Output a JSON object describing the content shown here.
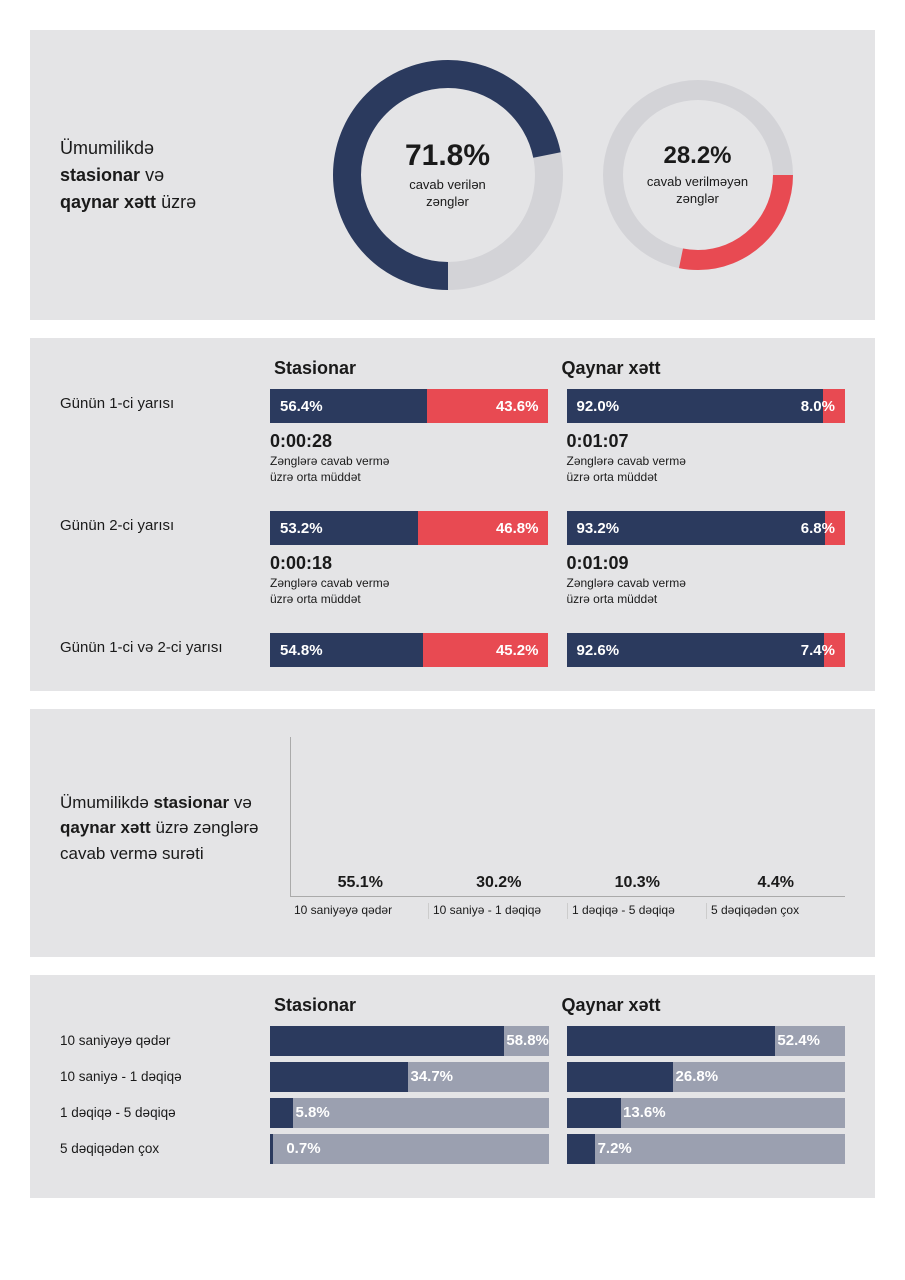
{
  "colors": {
    "navy": "#2b3a5e",
    "red": "#e84a52",
    "lightgrey": "#d3d3d7",
    "panel_bg": "#e4e4e6",
    "bar_track": "#9ba0b0",
    "text": "#1a1a1a",
    "white": "#ffffff"
  },
  "panel1": {
    "title_prefix": "Ümumilikdə ",
    "title_bold1": "stasionar",
    "title_mid": " və ",
    "title_bold2": "qaynar xətt",
    "title_suffix": " üzrə",
    "donut1": {
      "percent": 71.8,
      "percent_label": "71.8%",
      "caption": "cavab verilən\nzənglər",
      "ring_color": "#2b3a5e",
      "bg_ring": "#d3d3d7",
      "start_deg": 90
    },
    "donut2": {
      "percent": 28.2,
      "percent_label": "28.2%",
      "caption": "cavab verilməyən\nzənglər",
      "ring_color": "#e84a52",
      "bg_ring": "#d3d3d7",
      "start_deg": 0
    }
  },
  "panel2": {
    "col1_header": "Stasionar",
    "col2_header": "Qaynar xətt",
    "rows": [
      {
        "label": "Günün 1-ci yarısı",
        "stasionar": {
          "left_pct": 56.4,
          "left_label": "56.4%",
          "right_pct": 43.6,
          "right_label": "43.6%",
          "time": "0:00:28"
        },
        "qaynar": {
          "left_pct": 92.0,
          "left_label": "92.0%",
          "right_pct": 8.0,
          "right_label": "8.0%",
          "time": "0:01:07"
        },
        "time_desc": "Zənglərə cavab vermə\nüzrə orta müddət"
      },
      {
        "label": "Günün 2-ci yarısı",
        "stasionar": {
          "left_pct": 53.2,
          "left_label": "53.2%",
          "right_pct": 46.8,
          "right_label": "46.8%",
          "time": "0:00:18"
        },
        "qaynar": {
          "left_pct": 93.2,
          "left_label": "93.2%",
          "right_pct": 6.8,
          "right_label": "6.8%",
          "time": "0:01:09"
        },
        "time_desc": "Zənglərə cavab vermə\nüzrə orta müddət"
      },
      {
        "label": "Günün 1-ci və 2-ci yarısı",
        "stasionar": {
          "left_pct": 54.8,
          "left_label": "54.8%",
          "right_pct": 45.2,
          "right_label": "45.2%"
        },
        "qaynar": {
          "left_pct": 92.6,
          "left_label": "92.6%",
          "right_pct": 7.4,
          "right_label": "7.4%"
        },
        "no_time": true
      }
    ]
  },
  "panel3": {
    "title_prefix": "Ümumilikdə ",
    "title_bold1": "stasionar",
    "title_mid": " və ",
    "title_bold2": "qaynar xətt",
    "title_suffix": " üzrə zənglərə cavab vermə surəti",
    "bars": [
      {
        "value": 55.1,
        "label": "55.1%",
        "xlabel": "10 saniyəyə qədər"
      },
      {
        "value": 30.2,
        "label": "30.2%",
        "xlabel": "10 saniyə - 1 dəqiqə"
      },
      {
        "value": 10.3,
        "label": "10.3%",
        "xlabel": "1 dəqiqə - 5 dəqiqə"
      },
      {
        "value": 4.4,
        "label": "4.4%",
        "xlabel": "5 dəqiqədən çox"
      }
    ],
    "ymax": 60,
    "bar_gradient_top": "#8690ad",
    "bar_gradient_bottom": "#c6cad6"
  },
  "panel4": {
    "col1_header": "Stasionar",
    "col2_header": "Qaynar xətt",
    "rows": [
      {
        "label": "10 saniyəyə  qədər",
        "stasionar": {
          "pct": 58.8,
          "label": "58.8%"
        },
        "qaynar": {
          "pct": 52.4,
          "label": "52.4%"
        }
      },
      {
        "label": "10 saniyə - 1 dəqiqə",
        "stasionar": {
          "pct": 34.7,
          "label": "34.7%"
        },
        "qaynar": {
          "pct": 26.8,
          "label": "26.8%"
        }
      },
      {
        "label": "1 dəqiqə - 5 dəqiqə",
        "stasionar": {
          "pct": 5.8,
          "label": "5.8%"
        },
        "qaynar": {
          "pct": 13.6,
          "label": "13.6%"
        }
      },
      {
        "label": "5 dəqiqədən çox",
        "stasionar": {
          "pct": 0.7,
          "label": "0.7%"
        },
        "qaynar": {
          "pct": 7.2,
          "label": "7.2%"
        }
      }
    ],
    "max_pct": 70
  }
}
